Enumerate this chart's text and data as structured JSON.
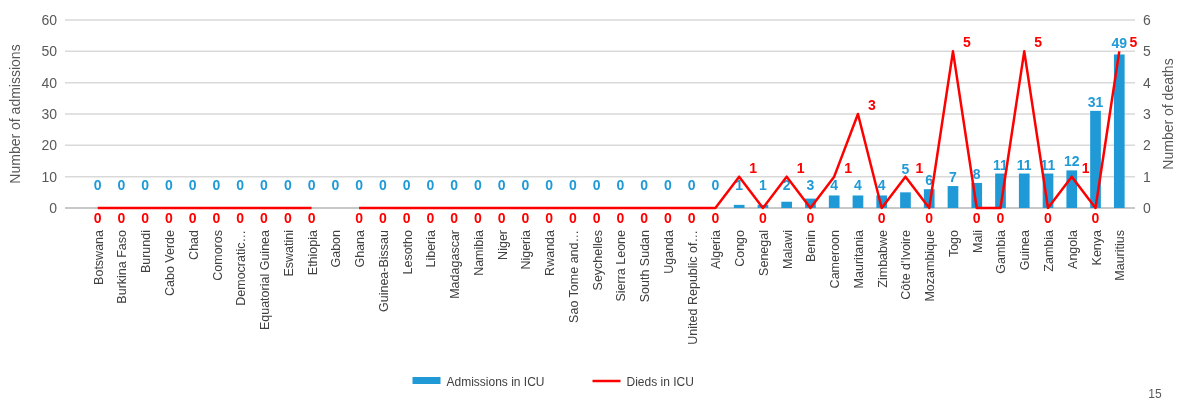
{
  "chart_data": {
    "type": "bar",
    "categories": [
      "Botswana",
      "Burkina Faso",
      "Burundi",
      "Cabo Verde",
      "Chad",
      "Comoros",
      "Democratic…",
      "Equatorial Guinea",
      "Eswatini",
      "Ethiopia",
      "Gabon",
      "Ghana",
      "Guinea-Bissau",
      "Lesotho",
      "Liberia",
      "Madagascar",
      "Namibia",
      "Niger",
      "Nigeria",
      "Rwanda",
      "Sao Tome and…",
      "Seychelles",
      "Sierra Leone",
      "South Sudan",
      "Uganda",
      "United Republic of…",
      "Algeria",
      "Congo",
      "Senegal",
      "Malawi",
      "Benin",
      "Cameroon",
      "Mauritania",
      "Zimbabwe",
      "Côte d'Ivoire",
      "Mozambique",
      "Togo",
      "Mali",
      "Gambia",
      "Guinea",
      "Zambia",
      "Angola",
      "Kenya",
      "Mauritius"
    ],
    "series": [
      {
        "name": "Admissions in ICU",
        "color": "#1f9ad6",
        "values": [
          0,
          0,
          0,
          0,
          0,
          0,
          0,
          0,
          0,
          0,
          0,
          0,
          0,
          0,
          0,
          0,
          0,
          0,
          0,
          0,
          0,
          0,
          0,
          0,
          0,
          0,
          0,
          1,
          1,
          2,
          3,
          4,
          4,
          4,
          5,
          6,
          7,
          8,
          11,
          11,
          11,
          12,
          31,
          49
        ]
      },
      {
        "name": "Dieds in ICU",
        "type": "line",
        "axis": "y2",
        "color": "#ff0000",
        "values": [
          0,
          0,
          0,
          0,
          0,
          0,
          0,
          0,
          0,
          0,
          null,
          0,
          0,
          0,
          0,
          0,
          0,
          0,
          0,
          0,
          0,
          0,
          0,
          0,
          0,
          0,
          0,
          1,
          0,
          1,
          0,
          1,
          3,
          0,
          1,
          0,
          5,
          0,
          0,
          5,
          0,
          1,
          0,
          5
        ]
      }
    ],
    "ylabel": "Number of admissions",
    "y2label": "Number of deaths",
    "ylim": [
      0,
      60
    ],
    "yticks": [
      0,
      10,
      20,
      30,
      40,
      50,
      60
    ],
    "y2lim": [
      0,
      6
    ],
    "y2ticks": [
      0,
      1,
      2,
      3,
      4,
      5,
      6
    ],
    "grid": "y",
    "legend": "bottom",
    "data_labels": true,
    "marker": "none",
    "line_style": "solid",
    "annotations": [
      "15"
    ]
  }
}
